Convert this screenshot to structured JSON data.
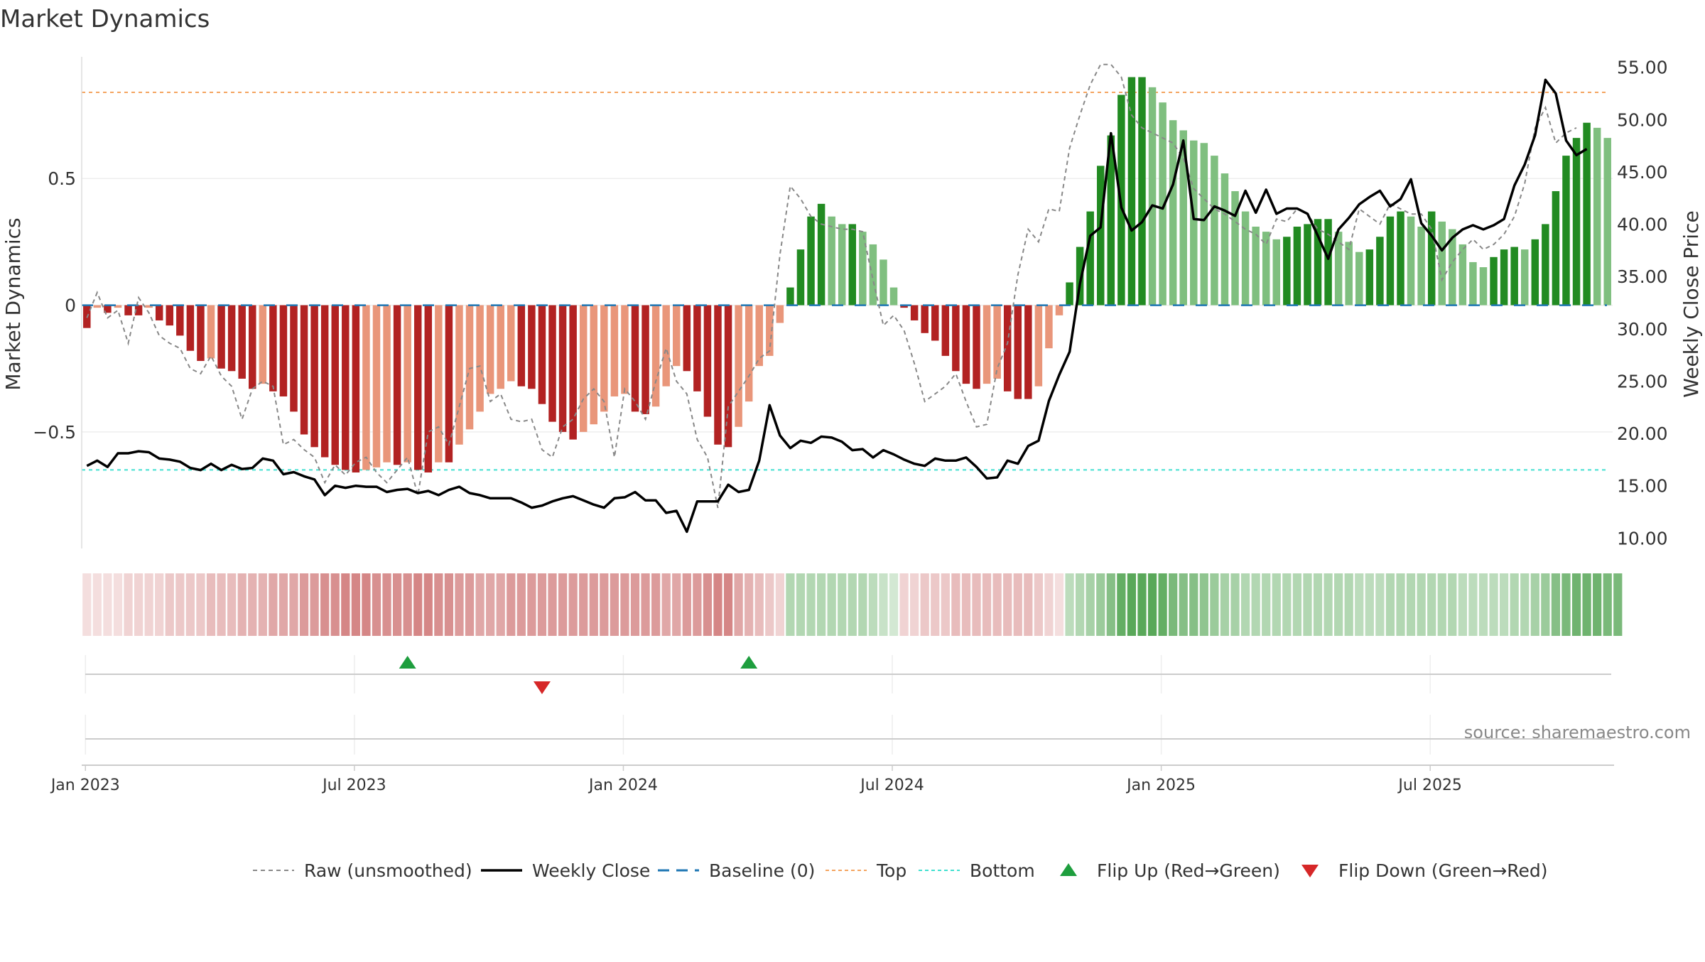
{
  "chart_data": {
    "type": "bar",
    "title": "Market Dynamics",
    "ylabel": "Market Dynamics",
    "y2label": "Weekly Close Price",
    "source": "source: sharemaestro.com",
    "grid": true,
    "legend_placement": "bottom-center",
    "yticks": [
      {
        "v": 0.5,
        "label": "0.5"
      },
      {
        "v": 0,
        "label": "0"
      },
      {
        "v": -0.5,
        "label": "−0.5"
      }
    ],
    "y2ticks": [
      "55.00",
      "50.00",
      "45.00",
      "40.00",
      "35.00",
      "30.00",
      "25.00",
      "20.00",
      "15.00",
      "10.00"
    ],
    "xticks": [
      "Jan 2023",
      "Jul 2023",
      "Jan 2024",
      "Jul 2024",
      "Jan 2025",
      "Jul 2025"
    ],
    "ylim": [
      -0.96,
      0.98
    ],
    "y2lim": [
      9,
      56
    ],
    "levels": {
      "top": 0.84,
      "bottom": -0.65,
      "baseline": 0
    },
    "colors": {
      "strong_neg": "#b22222",
      "weak_neg": "#e9967a",
      "strong_pos": "#228b22",
      "weak_pos": "#7fbf7f",
      "close": "#000000",
      "raw": "#888888",
      "top": "#f4a460",
      "bottom": "#40e0d0",
      "baseline": "#1f77b4",
      "flip_up": "#1e9e3e",
      "flip_down": "#d62728"
    },
    "legend": [
      {
        "key": "raw",
        "label": "Raw (unsmoothed)"
      },
      {
        "key": "close",
        "label": "Weekly Close"
      },
      {
        "key": "baseline",
        "label": "Baseline (0)"
      },
      {
        "key": "top",
        "label": "Top"
      },
      {
        "key": "bottom",
        "label": "Bottom"
      },
      {
        "key": "flip_up",
        "label": "Flip Up (Red→Green)"
      },
      {
        "key": "flip_down",
        "label": "Flip Down (Green→Red)"
      }
    ],
    "flips": {
      "up": [
        31,
        64
      ],
      "down": [
        44
      ]
    },
    "series": [
      {
        "name": "Market Dynamics",
        "values": [
          -0.09,
          -0.01,
          -0.03,
          -0.01,
          -0.04,
          -0.04,
          -0.01,
          -0.06,
          -0.08,
          -0.12,
          -0.18,
          -0.22,
          -0.21,
          -0.25,
          -0.26,
          -0.29,
          -0.33,
          -0.31,
          -0.34,
          -0.36,
          -0.42,
          -0.51,
          -0.56,
          -0.6,
          -0.63,
          -0.65,
          -0.66,
          -0.65,
          -0.64,
          -0.62,
          -0.63,
          -0.62,
          -0.65,
          -0.66,
          -0.62,
          -0.62,
          -0.55,
          -0.49,
          -0.42,
          -0.35,
          -0.33,
          -0.3,
          -0.32,
          -0.33,
          -0.39,
          -0.46,
          -0.5,
          -0.53,
          -0.5,
          -0.47,
          -0.42,
          -0.36,
          -0.35,
          -0.42,
          -0.43,
          -0.4,
          -0.32,
          -0.24,
          -0.26,
          -0.34,
          -0.44,
          -0.55,
          -0.56,
          -0.48,
          -0.38,
          -0.24,
          -0.2,
          -0.07,
          0.07,
          0.22,
          0.35,
          0.4,
          0.35,
          0.32,
          0.32,
          0.29,
          0.24,
          0.18,
          0.07,
          -0.01,
          -0.06,
          -0.11,
          -0.14,
          -0.2,
          -0.26,
          -0.31,
          -0.33,
          -0.31,
          -0.29,
          -0.34,
          -0.37,
          -0.37,
          -0.32,
          -0.17,
          -0.04,
          0.09,
          0.23,
          0.37,
          0.55,
          0.67,
          0.83,
          0.9,
          0.9,
          0.86,
          0.8,
          0.73,
          0.69,
          0.65,
          0.64,
          0.59,
          0.52,
          0.45,
          0.37,
          0.31,
          0.29,
          0.26,
          0.27,
          0.31,
          0.32,
          0.34,
          0.34,
          0.29,
          0.25,
          0.21,
          0.22,
          0.27,
          0.35,
          0.37,
          0.35,
          0.31,
          0.37,
          0.33,
          0.3,
          0.24,
          0.17,
          0.15,
          0.19,
          0.22,
          0.23,
          0.22,
          0.26,
          0.32,
          0.45,
          0.59,
          0.66,
          0.72,
          0.7,
          0.66
        ]
      },
      {
        "name": "Raw (unsmoothed)",
        "values": [
          -0.05,
          0.05,
          -0.05,
          -0.02,
          -0.15,
          0.03,
          -0.03,
          -0.12,
          -0.15,
          -0.17,
          -0.25,
          -0.27,
          -0.2,
          -0.28,
          -0.32,
          -0.45,
          -0.33,
          -0.3,
          -0.32,
          -0.55,
          -0.53,
          -0.57,
          -0.6,
          -0.7,
          -0.63,
          -0.67,
          -0.62,
          -0.6,
          -0.66,
          -0.7,
          -0.65,
          -0.6,
          -0.75,
          -0.5,
          -0.48,
          -0.55,
          -0.4,
          -0.25,
          -0.24,
          -0.38,
          -0.35,
          -0.45,
          -0.46,
          -0.45,
          -0.57,
          -0.6,
          -0.48,
          -0.45,
          -0.37,
          -0.33,
          -0.38,
          -0.6,
          -0.33,
          -0.38,
          -0.45,
          -0.3,
          -0.17,
          -0.3,
          -0.35,
          -0.53,
          -0.6,
          -0.8,
          -0.4,
          -0.34,
          -0.28,
          -0.21,
          -0.18,
          0.2,
          0.47,
          0.42,
          0.35,
          0.32,
          0.31,
          0.3,
          0.3,
          0.29,
          0.1,
          -0.08,
          -0.04,
          -0.1,
          -0.23,
          -0.38,
          -0.35,
          -0.32,
          -0.27,
          -0.38,
          -0.48,
          -0.47,
          -0.25,
          -0.15,
          0.12,
          0.3,
          0.25,
          0.38,
          0.37,
          0.62,
          0.75,
          0.87,
          0.95,
          0.95,
          0.9,
          0.75,
          0.7,
          0.68,
          0.66,
          0.64,
          0.58,
          0.46,
          0.42,
          0.38,
          0.36,
          0.33,
          0.3,
          0.28,
          0.24,
          0.34,
          0.33,
          0.38,
          0.36,
          0.3,
          0.28,
          0.25,
          0.22,
          0.38,
          0.35,
          0.32,
          0.4,
          0.38,
          0.36,
          0.36,
          0.3,
          0.1,
          0.17,
          0.22,
          0.26,
          0.22,
          0.24,
          0.28,
          0.35,
          0.48,
          0.7,
          0.78,
          0.64,
          0.68,
          0.7
        ]
      },
      {
        "name": "Weekly Close",
        "values": [
          16.9,
          17.4,
          16.8,
          18.1,
          18.1,
          18.3,
          18.2,
          17.6,
          17.5,
          17.3,
          16.7,
          16.5,
          17.1,
          16.5,
          17.0,
          16.6,
          16.7,
          17.6,
          17.4,
          16.1,
          16.3,
          15.9,
          15.6,
          14.1,
          15.0,
          14.8,
          15.0,
          14.9,
          14.9,
          14.4,
          14.6,
          14.7,
          14.3,
          14.5,
          14.1,
          14.6,
          14.9,
          14.3,
          14.1,
          13.8,
          13.8,
          13.8,
          13.4,
          12.9,
          13.1,
          13.5,
          13.8,
          14.0,
          13.6,
          13.2,
          12.9,
          13.8,
          13.9,
          14.4,
          13.6,
          13.6,
          12.4,
          12.6,
          10.6,
          13.5,
          13.5,
          13.5,
          15.1,
          14.4,
          14.6,
          17.4,
          22.7,
          19.8,
          18.6,
          19.3,
          19.1,
          19.7,
          19.6,
          19.2,
          18.4,
          18.5,
          17.7,
          18.4,
          18.0,
          17.5,
          17.1,
          16.9,
          17.6,
          17.4,
          17.4,
          17.7,
          16.8,
          15.7,
          15.8,
          17.4,
          17.1,
          18.8,
          19.3,
          23.1,
          25.6,
          27.8,
          34.3,
          38.9,
          39.7,
          48.7,
          41.6,
          39.4,
          40.2,
          41.8,
          41.5,
          43.8,
          48.0,
          40.5,
          40.4,
          41.7,
          41.3,
          40.8,
          43.2,
          41.1,
          43.3,
          41.0,
          41.5,
          41.5,
          41.0,
          38.9,
          36.7,
          39.5,
          40.6,
          41.9,
          42.6,
          43.2,
          41.7,
          42.4,
          44.3,
          40.1,
          38.9,
          37.5,
          38.7,
          39.5,
          39.9,
          39.5,
          39.9,
          40.5,
          43.7,
          45.7,
          48.5,
          53.8,
          52.5,
          48.0,
          46.6,
          47.2
        ]
      }
    ],
    "sentiment_strip": [
      0.15,
      0.15,
      0.15,
      0.15,
      0.2,
      0.2,
      0.2,
      0.2,
      0.25,
      0.25,
      0.25,
      0.25,
      0.3,
      0.3,
      0.3,
      0.35,
      0.35,
      0.35,
      0.4,
      0.4,
      0.4,
      0.45,
      0.45,
      0.5,
      0.5,
      0.55,
      0.55,
      0.55,
      0.5,
      0.5,
      0.5,
      0.5,
      0.55,
      0.55,
      0.5,
      0.5,
      0.45,
      0.45,
      0.4,
      0.4,
      0.4,
      0.45,
      0.45,
      0.45,
      0.45,
      0.45,
      0.45,
      0.45,
      0.45,
      0.45,
      0.45,
      0.45,
      0.45,
      0.45,
      0.45,
      0.45,
      0.4,
      0.4,
      0.45,
      0.45,
      0.5,
      0.55,
      0.55,
      0.4,
      0.35,
      0.3,
      0.25,
      0.2,
      -0.35,
      -0.35,
      -0.35,
      -0.35,
      -0.35,
      -0.35,
      -0.35,
      -0.35,
      -0.3,
      -0.25,
      -0.2,
      0.2,
      0.2,
      0.25,
      0.25,
      0.25,
      0.3,
      0.3,
      0.3,
      0.3,
      0.3,
      0.3,
      0.3,
      0.3,
      0.25,
      0.2,
      0.15,
      -0.3,
      -0.35,
      -0.4,
      -0.45,
      -0.55,
      -0.7,
      -0.75,
      -0.75,
      -0.75,
      -0.7,
      -0.6,
      -0.55,
      -0.55,
      -0.5,
      -0.45,
      -0.4,
      -0.4,
      -0.35,
      -0.35,
      -0.35,
      -0.35,
      -0.35,
      -0.35,
      -0.35,
      -0.35,
      -0.35,
      -0.35,
      -0.35,
      -0.3,
      -0.3,
      -0.3,
      -0.35,
      -0.35,
      -0.35,
      -0.35,
      -0.35,
      -0.35,
      -0.35,
      -0.3,
      -0.3,
      -0.3,
      -0.3,
      -0.3,
      -0.35,
      -0.35,
      -0.4,
      -0.45,
      -0.55,
      -0.6,
      -0.65,
      -0.65,
      -0.65,
      -0.6,
      -0.6
    ]
  }
}
